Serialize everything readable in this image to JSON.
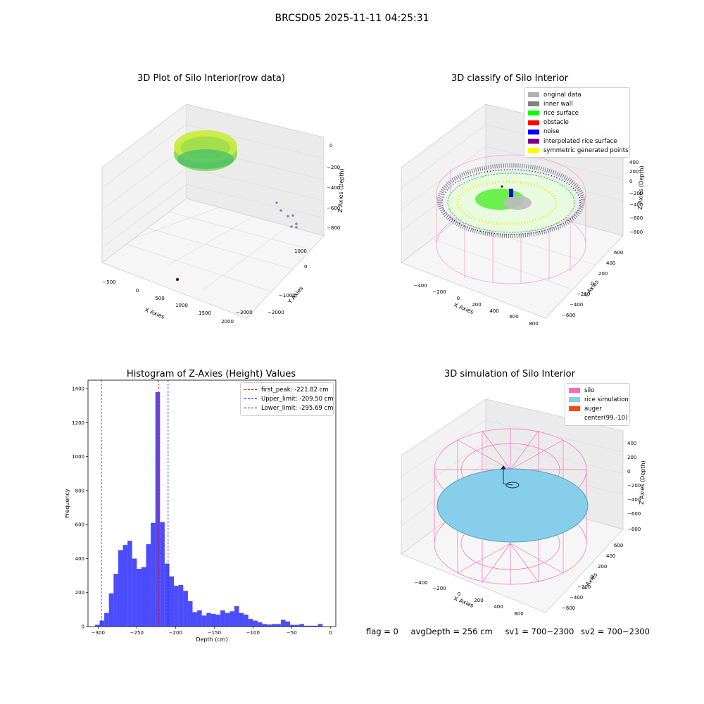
{
  "figure": {
    "suptitle": "BRCSD05 2025-11-11 04:25:31"
  },
  "panels": {
    "raw": {
      "title": "3D Plot of Silo Interior(row data)",
      "xlabel": "X Axies",
      "ylabel": "Y Axies",
      "zlabel": "Z Axies (Depth)",
      "x_ticks": [
        "−500",
        "0",
        "500",
        "1000",
        "1500",
        "2000"
      ],
      "y_ticks": [
        "1000",
        "0",
        "−1000",
        "−2000",
        "−3000"
      ],
      "z_ticks": [
        "0",
        "−200",
        "−400",
        "−600",
        "−800"
      ]
    },
    "classify": {
      "title": "3D classify of Silo Interior",
      "xlabel": "X Axies",
      "ylabel": "Y Axies",
      "zlabel": "Z Axies (Depth)",
      "x_ticks": [
        "−400",
        "−200",
        "0",
        "200",
        "400",
        "600",
        "800"
      ],
      "y_ticks": [
        "600",
        "400",
        "200",
        "0",
        "−200",
        "−400",
        "−600"
      ],
      "z_ticks": [
        "400",
        "200",
        "0",
        "−200",
        "−400",
        "−600",
        "−800"
      ],
      "legend": [
        {
          "label": "original data",
          "color": "#b0b0b0"
        },
        {
          "label": "inner wall",
          "color": "#808080"
        },
        {
          "label": "rice surface",
          "color": "#00ff00"
        },
        {
          "label": "obstacle",
          "color": "#ff0000"
        },
        {
          "label": "noise",
          "color": "#0000ff"
        },
        {
          "label": "interpolated rice surface",
          "color": "#800080"
        },
        {
          "label": "symmetric generated points",
          "color": "#ffff00"
        }
      ]
    },
    "simulation": {
      "title": "3D simulation of Silo Interior",
      "xlabel": "X Axies",
      "ylabel": "Y Axies",
      "zlabel": "Z Axies (Depth)",
      "x_ticks": [
        "−400",
        "−200",
        "0",
        "200",
        "400",
        "600"
      ],
      "y_ticks": [
        "600",
        "400",
        "200",
        "0",
        "−200",
        "−400",
        "−600"
      ],
      "z_ticks": [
        "400",
        "200",
        "0",
        "−200",
        "−400",
        "−600",
        "−800"
      ],
      "legend": [
        {
          "label": "silo",
          "color": "#ff69b4"
        },
        {
          "label": "rice simulation",
          "color": "#87ceeb"
        },
        {
          "label": "auger",
          "color": "#ff4500"
        },
        {
          "label": "center(99,-10)",
          "color": "#ffffff"
        }
      ]
    }
  },
  "footer": {
    "flag": "flag = 0",
    "avg_depth": "avgDepth = 256 cm",
    "sv1": "sv1 = 700~2300",
    "sv2": "sv2 = 700~2300"
  },
  "chart_data": {
    "type": "bar",
    "title": "Histogram of Z-Axies (Height) Values",
    "xlabel": "Depth (cm)",
    "ylabel": "Frequency",
    "xlim": [
      -313,
      7
    ],
    "ylim": [
      0,
      1450
    ],
    "x_ticks": [
      -300,
      -250,
      -200,
      -150,
      -100,
      -50,
      0
    ],
    "y_ticks": [
      0,
      200,
      400,
      600,
      800,
      1000,
      1200,
      1400
    ],
    "bar_color": "#0000ff",
    "bin_edges_start": -304,
    "bin_width": 6,
    "values": [
      10,
      35,
      80,
      195,
      310,
      450,
      480,
      505,
      400,
      340,
      350,
      485,
      610,
      1380,
      615,
      370,
      295,
      240,
      245,
      210,
      150,
      85,
      95,
      65,
      80,
      75,
      70,
      95,
      80,
      90,
      120,
      80,
      70,
      45,
      35,
      25,
      15,
      12,
      15,
      15,
      40,
      30,
      10,
      10,
      15,
      5,
      5,
      5,
      15
    ],
    "vlines": [
      {
        "label": "first_peak: -221.82 cm",
        "x": -221.82,
        "color": "#ff0000"
      },
      {
        "label": "Upper_limit: -209.50 cm",
        "x": -209.5,
        "color": "#0000ff"
      },
      {
        "label": "Lower_limit: -295.69 cm",
        "x": -295.69,
        "color": "#0000ff"
      }
    ]
  }
}
